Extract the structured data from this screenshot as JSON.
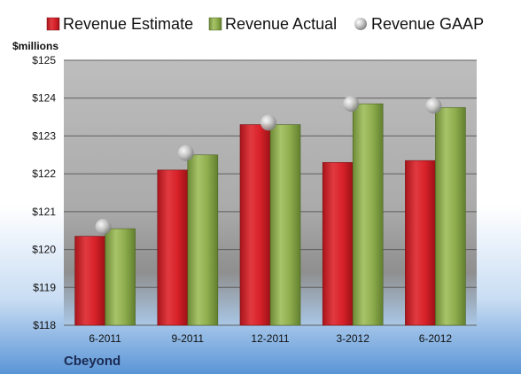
{
  "chart_data": {
    "type": "bar",
    "ylabel": "$millions",
    "company": "Cbeyond",
    "ylim": [
      118,
      125
    ],
    "ytick_values": [
      118,
      119,
      120,
      121,
      122,
      123,
      124,
      125
    ],
    "ytick_labels": [
      "$118",
      "$119",
      "$120",
      "$121",
      "$122",
      "$123",
      "$124",
      "$125"
    ],
    "categories": [
      "6-2011",
      "9-2011",
      "12-2011",
      "3-2012",
      "6-2012"
    ],
    "series": [
      {
        "name": "Revenue Estimate",
        "kind": "bar",
        "color": "#d9222a",
        "values": [
          120.35,
          122.1,
          123.3,
          122.3,
          122.35
        ]
      },
      {
        "name": "Revenue Actual",
        "kind": "bar",
        "color": "#8fae4e",
        "values": [
          120.55,
          122.5,
          123.3,
          123.85,
          123.75
        ]
      },
      {
        "name": "Revenue GAAP",
        "kind": "marker",
        "color": "#c8c8c8",
        "values": [
          120.6,
          122.55,
          123.35,
          123.85,
          123.8
        ]
      }
    ],
    "grid": true,
    "legend": "top"
  }
}
